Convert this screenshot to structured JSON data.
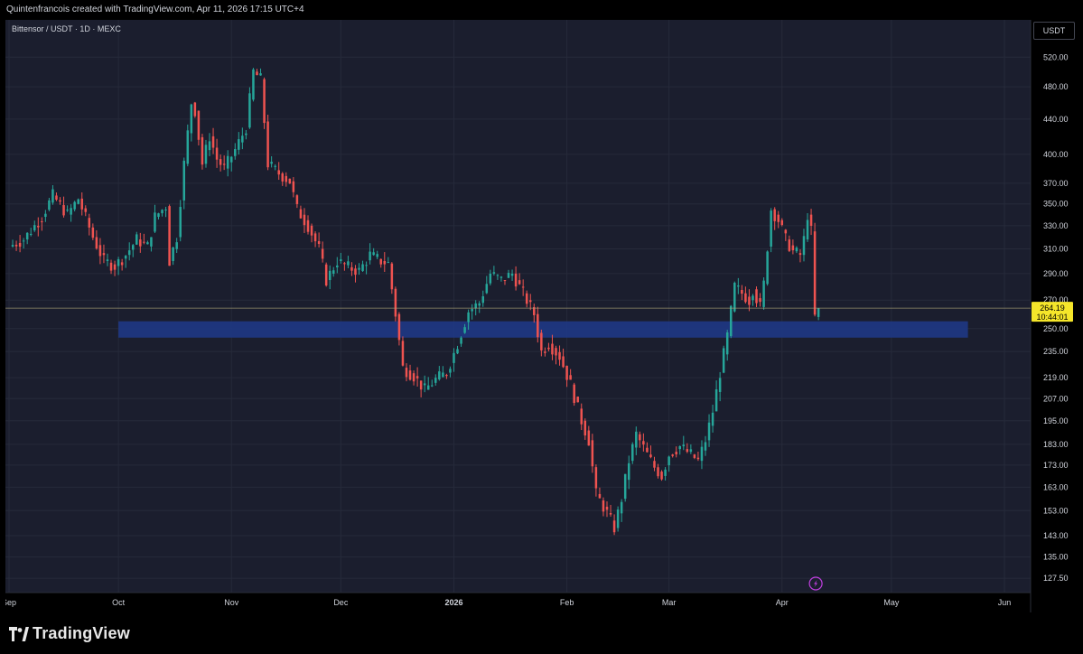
{
  "header": {
    "attribution": "Quintenfrancois created with TradingView.com, Apr 11, 2026 17:15 UTC+4"
  },
  "chart_header": {
    "symbol": "Bittensor / USDT · 1D · MEXC",
    "currency": "USDT"
  },
  "colors": {
    "background": "#1b1e2e",
    "up": "#26a69a",
    "down": "#ef5350",
    "zone": "#1e3a8a",
    "price_tag": "#f5e62a",
    "grid": "#262a3a"
  },
  "footer": {
    "brand": "TradingView"
  },
  "chart_data": {
    "type": "candlestick",
    "scale": "log",
    "y_ticks": [
      520,
      480,
      440,
      400,
      370,
      350,
      330,
      310,
      290,
      270,
      250,
      235,
      219,
      207,
      195,
      183,
      173,
      163,
      153,
      143,
      135,
      127.5
    ],
    "y_tick_labels": [
      "520.00",
      "480.00",
      "440.00",
      "400.00",
      "370.00",
      "350.00",
      "330.00",
      "310.00",
      "290.00",
      "270.00",
      "250.00",
      "235.00",
      "219.00",
      "207.00",
      "195.00",
      "183.00",
      "173.00",
      "163.00",
      "153.00",
      "143.00",
      "135.00",
      "127.50"
    ],
    "x_ticks": [
      {
        "label": "Sep",
        "date": "2025-09-01"
      },
      {
        "label": "Oct",
        "date": "2025-10-01"
      },
      {
        "label": "Nov",
        "date": "2025-11-01"
      },
      {
        "label": "Dec",
        "date": "2025-12-01"
      },
      {
        "label": "2026",
        "date": "2026-01-01"
      },
      {
        "label": "Feb",
        "date": "2026-02-01"
      },
      {
        "label": "Mar",
        "date": "2026-03-01"
      },
      {
        "label": "Apr",
        "date": "2026-04-01"
      },
      {
        "label": "May",
        "date": "2026-05-01"
      },
      {
        "label": "Jun",
        "date": "2026-06-01"
      }
    ],
    "last_price": 264.19,
    "last_price_label": "264.19",
    "countdown": "10:44:01",
    "support_zone": {
      "low": 244,
      "high": 255,
      "from": "2025-10-01",
      "to": "2026-05-22"
    },
    "closes": [
      {
        "date": "2025-09-01",
        "close": 312
      },
      {
        "date": "2025-09-05",
        "close": 318
      },
      {
        "date": "2025-09-10",
        "close": 338
      },
      {
        "date": "2025-09-13",
        "close": 358
      },
      {
        "date": "2025-09-17",
        "close": 340
      },
      {
        "date": "2025-09-20",
        "close": 355
      },
      {
        "date": "2025-09-24",
        "close": 320
      },
      {
        "date": "2025-09-27",
        "close": 300
      },
      {
        "date": "2025-09-30",
        "close": 296
      },
      {
        "date": "2025-10-03",
        "close": 305
      },
      {
        "date": "2025-10-06",
        "close": 318
      },
      {
        "date": "2025-10-09",
        "close": 312
      },
      {
        "date": "2025-10-11",
        "close": 338
      },
      {
        "date": "2025-10-14",
        "close": 348
      },
      {
        "date": "2025-10-15",
        "close": 300
      },
      {
        "date": "2025-10-17",
        "close": 320
      },
      {
        "date": "2025-10-19",
        "close": 390
      },
      {
        "date": "2025-10-21",
        "close": 460
      },
      {
        "date": "2025-10-22",
        "close": 450
      },
      {
        "date": "2025-10-24",
        "close": 390
      },
      {
        "date": "2025-10-26",
        "close": 420
      },
      {
        "date": "2025-10-28",
        "close": 395
      },
      {
        "date": "2025-10-30",
        "close": 385
      },
      {
        "date": "2025-11-02",
        "close": 405
      },
      {
        "date": "2025-11-05",
        "close": 430
      },
      {
        "date": "2025-11-07",
        "close": 500
      },
      {
        "date": "2025-11-09",
        "close": 490
      },
      {
        "date": "2025-11-11",
        "close": 390
      },
      {
        "date": "2025-11-14",
        "close": 380
      },
      {
        "date": "2025-11-17",
        "close": 372
      },
      {
        "date": "2025-11-19",
        "close": 345
      },
      {
        "date": "2025-11-22",
        "close": 330
      },
      {
        "date": "2025-11-25",
        "close": 310
      },
      {
        "date": "2025-11-27",
        "close": 285
      },
      {
        "date": "2025-11-30",
        "close": 300
      },
      {
        "date": "2025-12-03",
        "close": 295
      },
      {
        "date": "2025-12-06",
        "close": 292
      },
      {
        "date": "2025-12-09",
        "close": 305
      },
      {
        "date": "2025-12-12",
        "close": 300
      },
      {
        "date": "2025-12-14",
        "close": 298
      },
      {
        "date": "2025-12-16",
        "close": 260
      },
      {
        "date": "2025-12-18",
        "close": 225
      },
      {
        "date": "2025-12-21",
        "close": 220
      },
      {
        "date": "2025-12-24",
        "close": 212
      },
      {
        "date": "2025-12-27",
        "close": 218
      },
      {
        "date": "2025-12-30",
        "close": 222
      },
      {
        "date": "2026-01-02",
        "close": 240
      },
      {
        "date": "2026-01-05",
        "close": 262
      },
      {
        "date": "2026-01-08",
        "close": 268
      },
      {
        "date": "2026-01-11",
        "close": 290
      },
      {
        "date": "2026-01-14",
        "close": 285
      },
      {
        "date": "2026-01-17",
        "close": 290
      },
      {
        "date": "2026-01-20",
        "close": 275
      },
      {
        "date": "2026-01-23",
        "close": 260
      },
      {
        "date": "2026-01-25",
        "close": 235
      },
      {
        "date": "2026-01-27",
        "close": 240
      },
      {
        "date": "2026-01-30",
        "close": 232
      },
      {
        "date": "2026-02-02",
        "close": 215
      },
      {
        "date": "2026-02-05",
        "close": 195
      },
      {
        "date": "2026-02-07",
        "close": 185
      },
      {
        "date": "2026-02-09",
        "close": 160
      },
      {
        "date": "2026-02-12",
        "close": 152
      },
      {
        "date": "2026-02-14",
        "close": 146
      },
      {
        "date": "2026-02-16",
        "close": 158
      },
      {
        "date": "2026-02-18",
        "close": 175
      },
      {
        "date": "2026-02-20",
        "close": 188
      },
      {
        "date": "2026-02-23",
        "close": 178
      },
      {
        "date": "2026-02-25",
        "close": 172
      },
      {
        "date": "2026-02-27",
        "close": 168
      },
      {
        "date": "2026-03-01",
        "close": 178
      },
      {
        "date": "2026-03-04",
        "close": 182
      },
      {
        "date": "2026-03-07",
        "close": 178
      },
      {
        "date": "2026-03-09",
        "close": 175
      },
      {
        "date": "2026-03-11",
        "close": 185
      },
      {
        "date": "2026-03-13",
        "close": 200
      },
      {
        "date": "2026-03-15",
        "close": 222
      },
      {
        "date": "2026-03-17",
        "close": 245
      },
      {
        "date": "2026-03-19",
        "close": 280
      },
      {
        "date": "2026-03-21",
        "close": 275
      },
      {
        "date": "2026-03-23",
        "close": 270
      },
      {
        "date": "2026-03-24",
        "close": 278
      },
      {
        "date": "2026-03-26",
        "close": 265
      },
      {
        "date": "2026-03-27",
        "close": 282
      },
      {
        "date": "2026-03-29",
        "close": 345
      },
      {
        "date": "2026-03-31",
        "close": 335
      },
      {
        "date": "2026-04-02",
        "close": 318
      },
      {
        "date": "2026-04-04",
        "close": 308
      },
      {
        "date": "2026-04-06",
        "close": 305
      },
      {
        "date": "2026-04-07",
        "close": 318
      },
      {
        "date": "2026-04-08",
        "close": 340
      },
      {
        "date": "2026-04-09",
        "close": 325
      },
      {
        "date": "2026-04-10",
        "close": 258
      },
      {
        "date": "2026-04-11",
        "close": 264.19
      }
    ]
  }
}
